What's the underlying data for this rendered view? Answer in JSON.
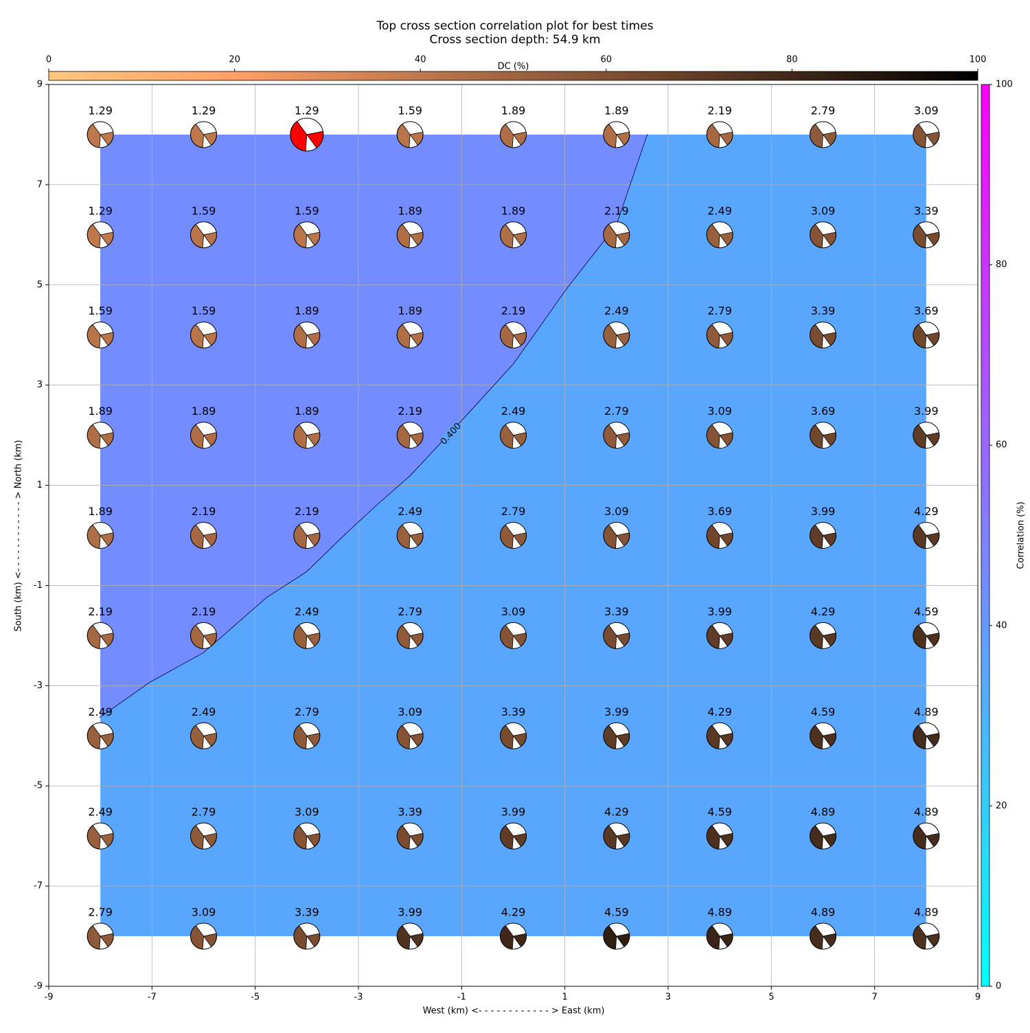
{
  "chart_data": {
    "type": "beachball-grid",
    "title": "Top cross section correlation plot for best times",
    "subtitle": "Cross section depth: 54.9 km",
    "x_label": "West (km) <- - - - - - - - - - - - > East (km)",
    "y_label": "South (km) <- - - - - - - - - - - - > North (km)",
    "xlim": [
      -9,
      9
    ],
    "ylim": [
      -9,
      9
    ],
    "xticks": [
      -9,
      -7,
      -5,
      -3,
      -1,
      1,
      3,
      5,
      7,
      9
    ],
    "yticks": [
      -9,
      -7,
      -5,
      -3,
      -1,
      1,
      3,
      5,
      7,
      9
    ],
    "grid": true,
    "x": [
      -8,
      -6,
      -4,
      -2,
      0,
      2,
      4,
      6,
      8
    ],
    "y": [
      8,
      6,
      4,
      2,
      0,
      -2,
      -4,
      -6,
      -8
    ],
    "times": [
      [
        1.29,
        1.29,
        1.29,
        1.59,
        1.89,
        1.89,
        2.19,
        2.79,
        3.09
      ],
      [
        1.29,
        1.59,
        1.59,
        1.89,
        1.89,
        2.19,
        2.49,
        3.09,
        3.39
      ],
      [
        1.59,
        1.59,
        1.89,
        1.89,
        2.19,
        2.49,
        2.79,
        3.39,
        3.69
      ],
      [
        1.89,
        1.89,
        1.89,
        2.19,
        2.49,
        2.79,
        3.09,
        3.69,
        3.99
      ],
      [
        1.89,
        2.19,
        2.19,
        2.49,
        2.79,
        3.09,
        3.69,
        3.99,
        4.29
      ],
      [
        2.19,
        2.19,
        2.49,
        2.79,
        3.09,
        3.39,
        3.99,
        4.29,
        4.59
      ],
      [
        2.49,
        2.49,
        2.79,
        3.09,
        3.39,
        3.99,
        4.29,
        4.59,
        4.89
      ],
      [
        2.49,
        2.79,
        3.09,
        3.39,
        3.99,
        4.29,
        4.59,
        4.89,
        4.89
      ],
      [
        2.79,
        3.09,
        3.39,
        3.99,
        4.29,
        4.59,
        4.89,
        4.89,
        4.89
      ]
    ],
    "dc": [
      [
        40,
        40,
        40,
        42,
        45,
        45,
        48,
        55,
        58
      ],
      [
        40,
        42,
        42,
        45,
        45,
        48,
        52,
        58,
        62
      ],
      [
        42,
        42,
        45,
        45,
        48,
        52,
        55,
        62,
        65
      ],
      [
        45,
        45,
        45,
        48,
        52,
        55,
        58,
        65,
        70
      ],
      [
        45,
        48,
        48,
        52,
        55,
        58,
        65,
        70,
        72
      ],
      [
        48,
        48,
        52,
        55,
        58,
        62,
        70,
        72,
        76
      ],
      [
        52,
        52,
        55,
        58,
        62,
        70,
        72,
        76,
        78
      ],
      [
        52,
        55,
        58,
        62,
        70,
        72,
        76,
        78,
        78
      ],
      [
        55,
        58,
        62,
        75,
        80,
        85,
        82,
        78,
        76
      ]
    ],
    "highlight": [
      0,
      2
    ],
    "highlight_color": "#ff0000",
    "field_xlim": [
      -8,
      8
    ],
    "field_ylim": [
      -8,
      8
    ],
    "low_value": 35,
    "high_value": 45,
    "contour_level": {
      "value": 0.4,
      "label": "0.400"
    },
    "contour": {
      "x": [
        -8.02,
        -7.04,
        -6.0,
        -4.78,
        -4.01,
        -3.26,
        -2.64,
        -2.0,
        -1.01,
        0.0,
        0.4,
        1.01,
        2.0,
        2.45,
        2.6
      ],
      "y": [
        -3.64,
        -2.93,
        -2.34,
        -1.24,
        -0.73,
        0.02,
        0.61,
        1.19,
        2.28,
        3.42,
        4.0,
        4.89,
        6.2,
        7.56,
        8.01
      ]
    },
    "dc_colorbar": {
      "label": "DC (%)",
      "lim": [
        0,
        100
      ],
      "ticks": [
        0,
        20,
        40,
        60,
        80,
        100
      ]
    },
    "corr_colorbar": {
      "label": "Correlation (%)",
      "lim": [
        0,
        100
      ],
      "ticks": [
        0,
        20,
        40,
        60,
        80,
        100
      ]
    }
  }
}
